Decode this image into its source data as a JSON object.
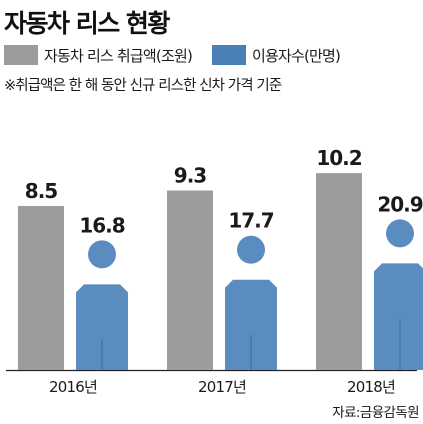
{
  "title": "자동차 리스 현황",
  "note": "※취급액은 한 해 동안 신규 리스한 신차 가격 기준",
  "source": "자료:금융감독원",
  "colors": {
    "amount": "#9c9c9c",
    "users": "#5b8cc0",
    "users_swatch": "#4a80b6"
  },
  "chart_data": {
    "type": "bar",
    "categories": [
      "2016년",
      "2017년",
      "2018년"
    ],
    "series": [
      {
        "name": "자동차 리스 취급액(조원)",
        "values": [
          8.5,
          9.3,
          10.2
        ],
        "labels": [
          "8.5",
          "9.3",
          "10.2"
        ]
      },
      {
        "name": "이용자수(만명)",
        "values": [
          16.8,
          17.7,
          20.9
        ],
        "labels": [
          "16.8",
          "17.7",
          "20.9"
        ],
        "icon": "person-icon"
      }
    ],
    "legend_position": "top-left",
    "grid": false
  }
}
